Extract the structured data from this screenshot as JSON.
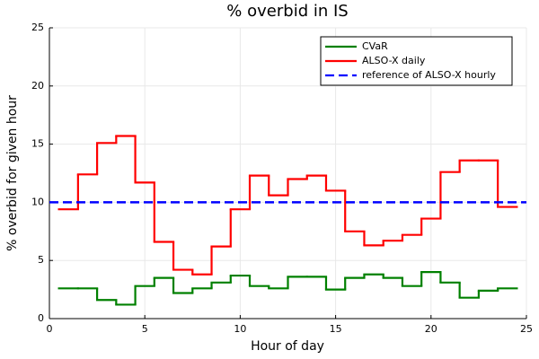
{
  "chart_data": {
    "type": "step",
    "title": "% overbid in IS",
    "xlabel": "Hour of day",
    "ylabel": "% overbid for given hour",
    "x": [
      1,
      2,
      3,
      4,
      5,
      6,
      7,
      8,
      9,
      10,
      11,
      12,
      13,
      14,
      15,
      16,
      17,
      18,
      19,
      20,
      21,
      22,
      23,
      24
    ],
    "series": [
      {
        "name": "CVaR",
        "color": "#008000",
        "values": [
          2.6,
          2.6,
          1.6,
          1.2,
          2.8,
          3.5,
          2.2,
          2.6,
          3.1,
          3.7,
          2.8,
          2.6,
          3.6,
          3.6,
          2.5,
          3.5,
          3.8,
          3.5,
          2.8,
          4.0,
          3.1,
          1.8,
          2.4,
          2.6
        ]
      },
      {
        "name": "ALSO-X daily",
        "color": "#ff0000",
        "values": [
          9.4,
          12.4,
          15.1,
          15.7,
          11.7,
          6.6,
          4.2,
          3.8,
          6.2,
          9.4,
          12.3,
          10.6,
          12.0,
          12.3,
          11.0,
          7.5,
          6.3,
          6.7,
          7.2,
          8.6,
          12.6,
          13.6,
          13.6,
          9.6
        ]
      },
      {
        "name": "reference of ALSO-X hourly",
        "color": "#0000ff",
        "style": "dashed",
        "hline": 10
      }
    ],
    "xlim": [
      0,
      25
    ],
    "xticks": [
      0,
      5,
      10,
      15,
      20,
      25
    ],
    "ylim": [
      0,
      25
    ],
    "yticks": [
      0,
      5,
      10,
      15,
      20,
      25
    ],
    "grid": true,
    "legend": "top-right"
  }
}
